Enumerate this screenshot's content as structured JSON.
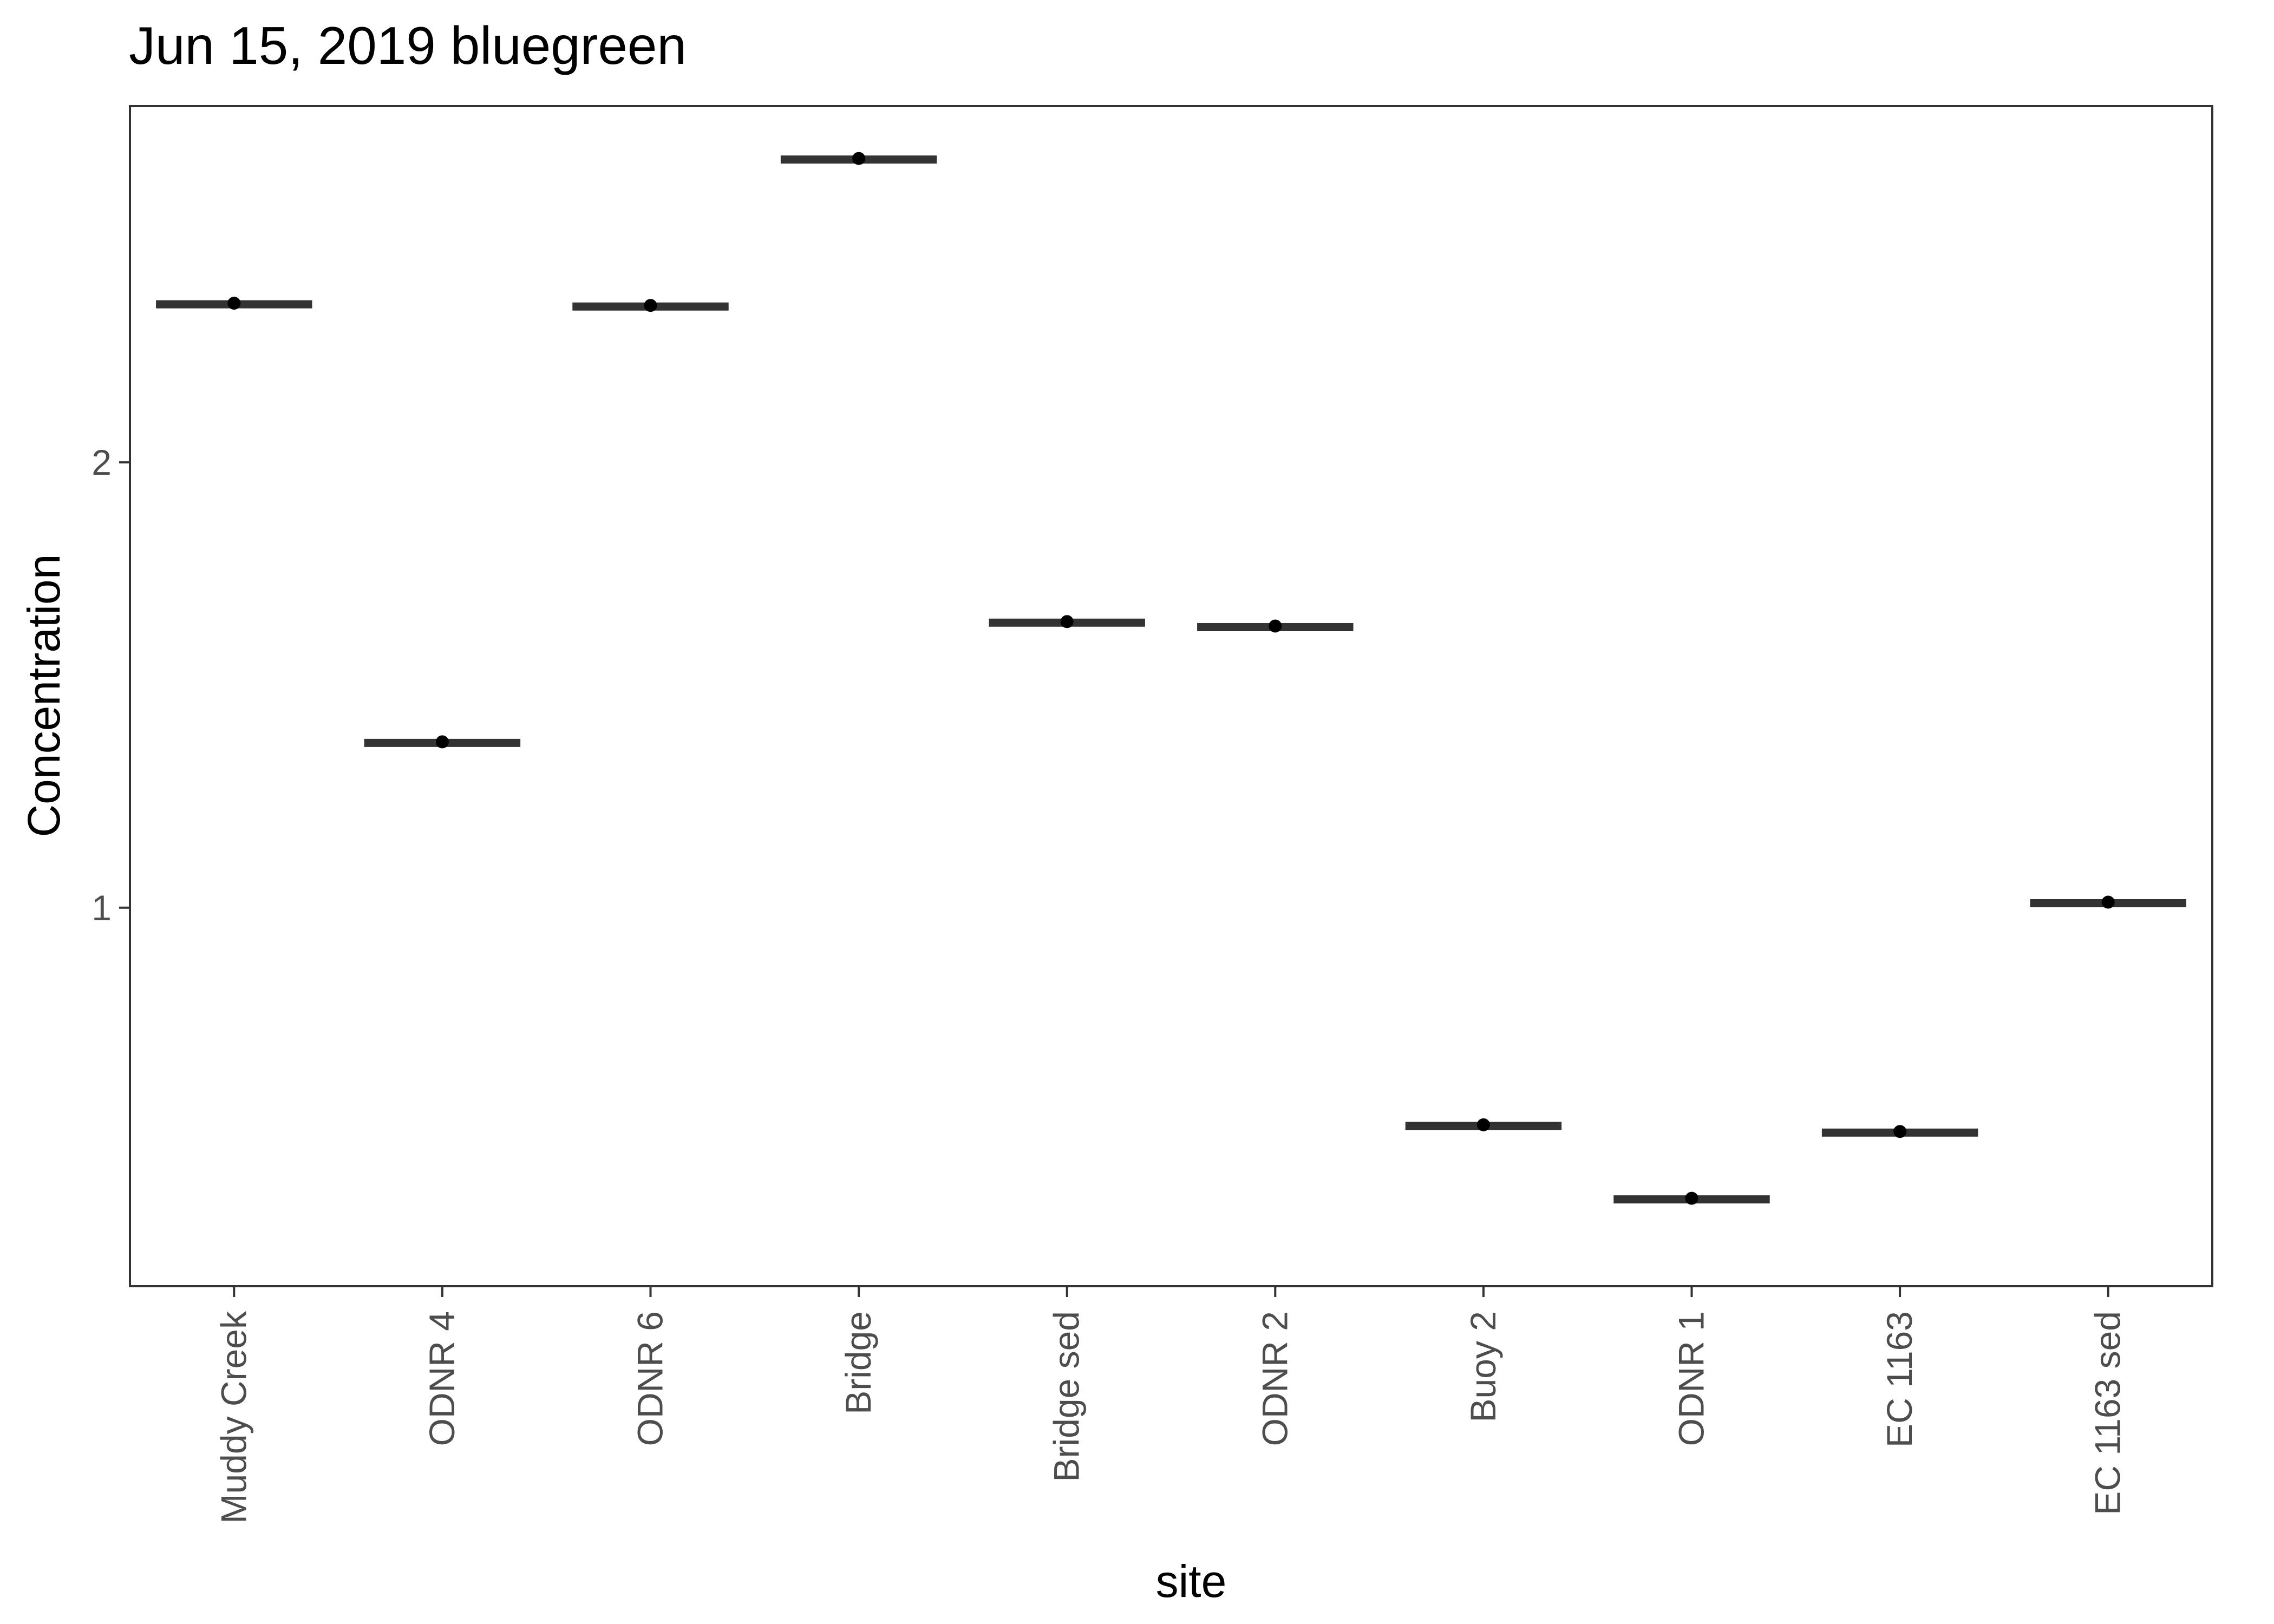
{
  "chart_data": {
    "type": "boxplot",
    "title": "Jun 15, 2019 bluegreen",
    "xlabel": "site",
    "ylabel": "Concentration",
    "categories": [
      "Muddy Creek",
      "ODNR 4",
      "ODNR 6",
      "Bridge",
      "Bridge sed",
      "ODNR 2",
      "Buoy 2",
      "ODNR 1",
      "EC 1163",
      "EC 1163 sed"
    ],
    "values": [
      2.355,
      1.37,
      2.35,
      2.68,
      1.64,
      1.63,
      0.51,
      0.345,
      0.495,
      1.01
    ],
    "ylim": [
      0.15,
      2.8
    ],
    "yticks": [
      1,
      2
    ],
    "grid": false,
    "legend": "none",
    "colors": {
      "box_line": "#333333",
      "point": "#000000",
      "panel_border": "#333333",
      "tick": "#333333"
    }
  }
}
